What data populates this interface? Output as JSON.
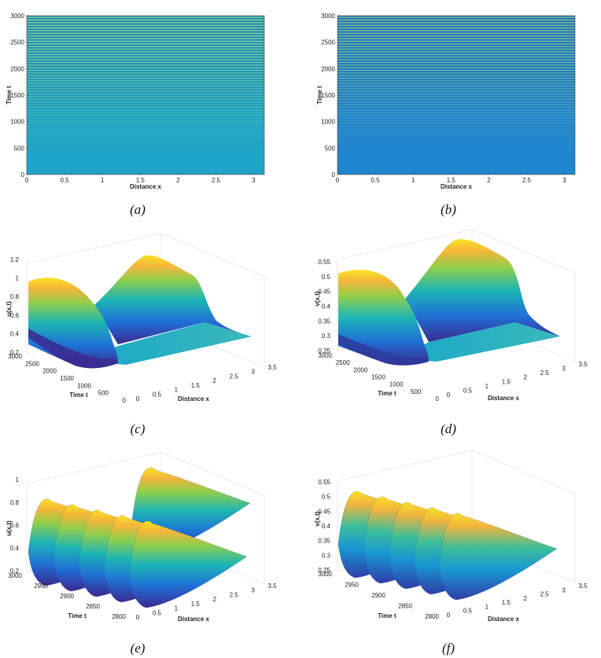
{
  "captions": [
    "(a)",
    "(b)",
    "(c)",
    "(d)",
    "(e)",
    "(f)"
  ],
  "chart_data": [
    {
      "id": "a",
      "type": "heatmap",
      "xlabel": "Distance x",
      "ylabel": "Time t",
      "xlim": [
        0,
        3.14
      ],
      "ylim": [
        0,
        3000
      ],
      "xticks": [
        "0",
        "0.5",
        "1",
        "1.5",
        "2",
        "2.5",
        "3"
      ],
      "yticks": [
        "0",
        "500",
        "1000",
        "1500",
        "2000",
        "2500",
        "3000"
      ],
      "base_color": "#1fa5c8",
      "stripe_color": "#d4e05a"
    },
    {
      "id": "b",
      "type": "heatmap",
      "xlabel": "Distance x",
      "ylabel": "Time t",
      "xlim": [
        0,
        3.14
      ],
      "ylim": [
        0,
        3000
      ],
      "xticks": [
        "0",
        "0.5",
        "1",
        "1.5",
        "2",
        "2.5",
        "3"
      ],
      "yticks": [
        "0",
        "500",
        "1000",
        "1500",
        "2000",
        "2500",
        "3000"
      ],
      "base_color": "#1f86d0",
      "stripe_color": "#c9df55"
    },
    {
      "id": "c",
      "type": "surface",
      "zlabel": "u(x,t)",
      "tlabel": "Time t",
      "xlabel": "Distance x",
      "zticks": [
        "0.2",
        "0.4",
        "0.6",
        "0.8",
        "1",
        "1.2"
      ],
      "tticks": [
        "3000",
        "2500",
        "2000",
        "1500",
        "1000",
        "500",
        "0"
      ],
      "xticks": [
        "0",
        "0.5",
        "1",
        "1.5",
        "2",
        "2.5",
        "3",
        "3.5"
      ]
    },
    {
      "id": "d",
      "type": "surface",
      "zlabel": "v(x,t)",
      "tlabel": "Time t",
      "xlabel": "Distance x",
      "zticks": [
        "0.25",
        "0.3",
        "0.35",
        "0.4",
        "0.45",
        "0.5",
        "0.55"
      ],
      "tticks": [
        "3000",
        "2500",
        "2000",
        "1500",
        "1000",
        "500",
        "0"
      ],
      "xticks": [
        "0",
        "0.5",
        "1",
        "1.5",
        "2",
        "2.5",
        "3",
        "3.5"
      ]
    },
    {
      "id": "e",
      "type": "surface",
      "zlabel": "u(x,t)",
      "tlabel": "Time t",
      "xlabel": "Distance x",
      "zticks": [
        "0.2",
        "0.4",
        "0.6",
        "0.8",
        "1"
      ],
      "tticks": [
        "3000",
        "2950",
        "2900",
        "2850",
        "2800"
      ],
      "xticks": [
        "0",
        "0.5",
        "1",
        "1.5",
        "2",
        "2.5",
        "3",
        "3.5"
      ]
    },
    {
      "id": "f",
      "type": "surface",
      "zlabel": "v(x,t)",
      "tlabel": "Time t",
      "xlabel": "Distance x",
      "zticks": [
        "0.25",
        "0.3",
        "0.35",
        "0.4",
        "0.45",
        "0.5",
        "0.55"
      ],
      "tticks": [
        "3000",
        "2950",
        "2900",
        "2850",
        "2800"
      ],
      "xticks": [
        "0",
        "0.5",
        "1",
        "1.5",
        "2",
        "2.5",
        "3",
        "3.5"
      ]
    }
  ]
}
